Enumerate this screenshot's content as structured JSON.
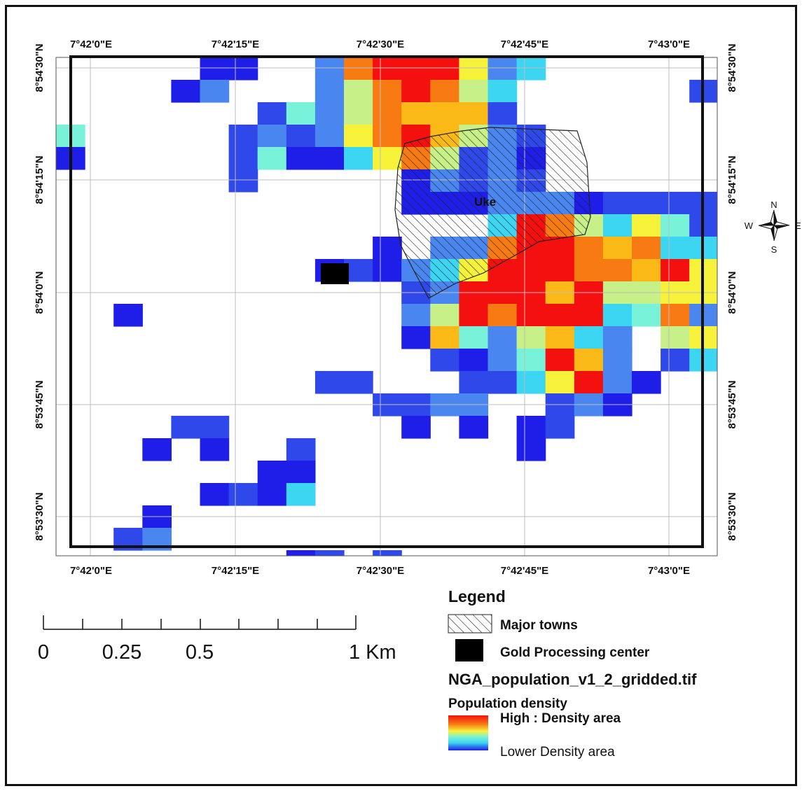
{
  "map": {
    "town_label": "Uke",
    "lon_labels": [
      "7°42'0\"E",
      "7°42'15\"E",
      "7°42'30\"E",
      "7°42'45\"E",
      "7°43'0\"E"
    ],
    "lat_labels": [
      "8°54'30\"N",
      "8°54'15\"N",
      "8°54'0\"N",
      "8°53'45\"N",
      "8°53'30\"N"
    ]
  },
  "colors": {
    "c1": "#1e1ee8",
    "c2": "#2f48ea",
    "c3": "#4a86f0",
    "c4": "#3cd6f2",
    "c5": "#78f2d8",
    "c6": "#c8f088",
    "c7": "#f6f23a",
    "c8": "#fbb918",
    "c9": "#f77a12",
    "c10": "#f51010",
    "gold_center": "#000000"
  },
  "compass": {
    "n": "N",
    "s": "S",
    "e": "E",
    "w": "W"
  },
  "scale_bar": {
    "labels": [
      "0",
      "0.25",
      "0.5",
      "1 Km"
    ]
  },
  "legend": {
    "title": "Legend",
    "major_towns": "Major towns",
    "gold_center": "Gold Processing center",
    "layer": "NGA_population_v1_2_gridded.tif",
    "density_title": "Population density",
    "high": "High : Density area",
    "low": "Lower  Density area"
  }
}
